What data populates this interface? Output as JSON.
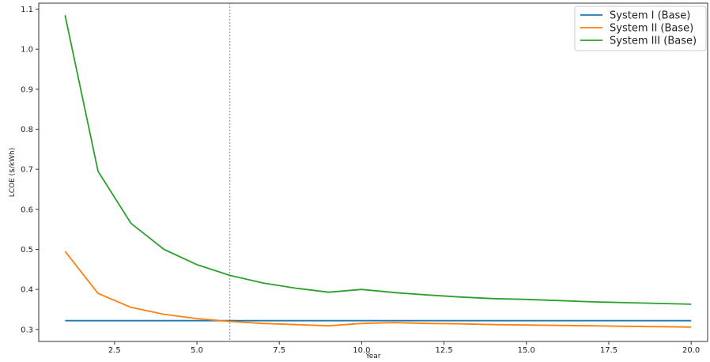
{
  "chart_data": {
    "type": "line",
    "title": "",
    "xlabel": "Year",
    "ylabel": "LCOE ($/kWh)",
    "xlim": [
      0.2,
      20.5
    ],
    "ylim": [
      0.27,
      1.115
    ],
    "xticks": [
      2.5,
      5.0,
      7.5,
      10.0,
      12.5,
      15.0,
      17.5,
      20.0
    ],
    "xtick_labels": [
      "2.5",
      "5.0",
      "7.5",
      "10.0",
      "12.5",
      "15.0",
      "17.5",
      "20.0"
    ],
    "yticks": [
      0.3,
      0.4,
      0.5,
      0.6,
      0.7,
      0.8,
      0.9,
      1.0,
      1.1
    ],
    "ytick_labels": [
      "0.3",
      "0.4",
      "0.5",
      "0.6",
      "0.7",
      "0.8",
      "0.9",
      "1.0",
      "1.1"
    ],
    "grid": false,
    "legend_position": "top-right",
    "vline": {
      "x": 6,
      "style": "dotted",
      "color": "#888888"
    },
    "x": [
      1,
      2,
      3,
      4,
      5,
      6,
      7,
      8,
      9,
      10,
      11,
      12,
      13,
      14,
      15,
      16,
      17,
      18,
      19,
      20
    ],
    "series": [
      {
        "name": "System I (Base)",
        "color": "#1f77b4",
        "values": [
          0.322,
          0.322,
          0.322,
          0.322,
          0.322,
          0.322,
          0.322,
          0.322,
          0.322,
          0.322,
          0.322,
          0.322,
          0.322,
          0.322,
          0.322,
          0.322,
          0.322,
          0.322,
          0.322,
          0.322
        ]
      },
      {
        "name": "System II (Base)",
        "color": "#ff7f0e",
        "values": [
          0.495,
          0.39,
          0.355,
          0.338,
          0.327,
          0.32,
          0.315,
          0.312,
          0.309,
          0.315,
          0.317,
          0.315,
          0.314,
          0.312,
          0.311,
          0.31,
          0.309,
          0.308,
          0.307,
          0.306
        ]
      },
      {
        "name": "System III (Base)",
        "color": "#2ca02c",
        "values": [
          1.085,
          0.695,
          0.565,
          0.5,
          0.462,
          0.435,
          0.416,
          0.403,
          0.393,
          0.4,
          0.392,
          0.386,
          0.381,
          0.377,
          0.375,
          0.372,
          0.369,
          0.367,
          0.365,
          0.363
        ]
      }
    ]
  }
}
